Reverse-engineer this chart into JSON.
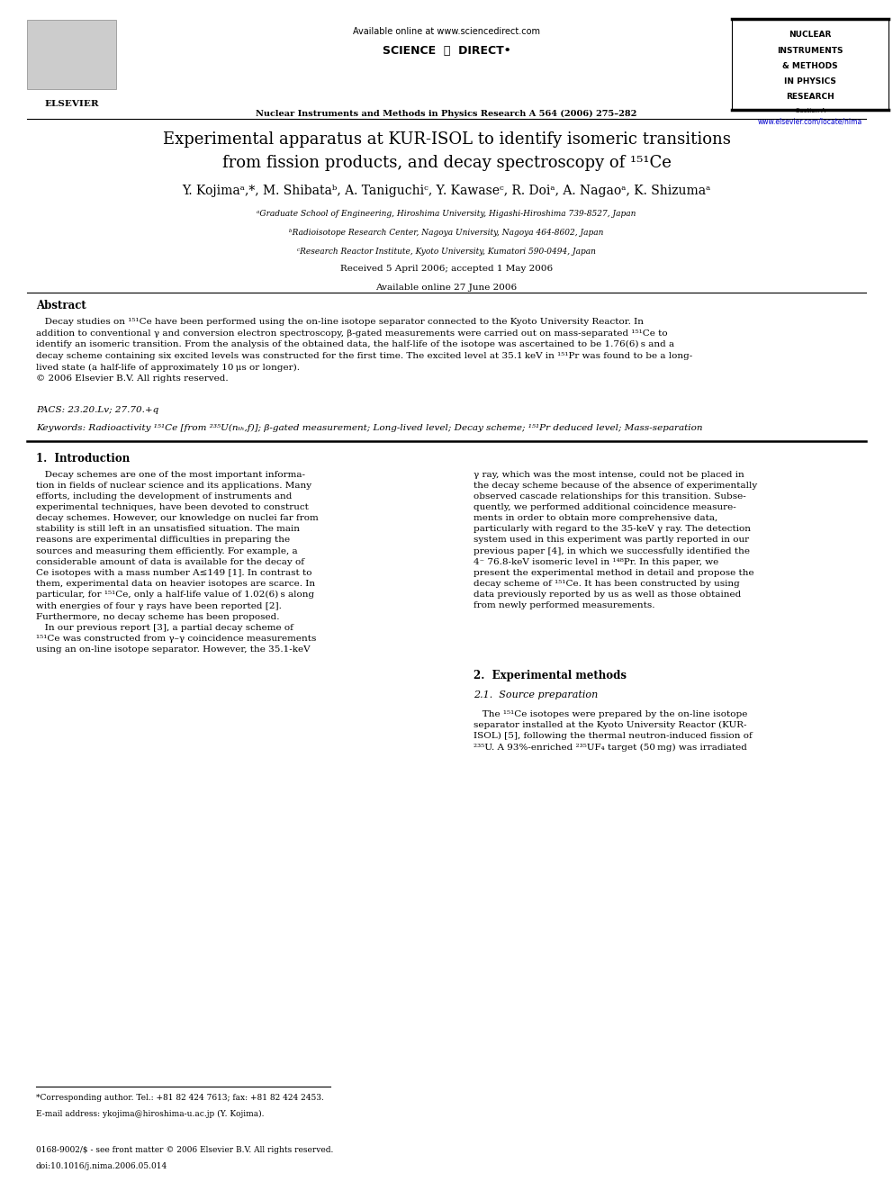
{
  "background_color": "#ffffff",
  "page_width": 9.92,
  "page_height": 13.23,
  "journal_name": "Nuclear Instruments and Methods in Physics Research A 564 (2006) 275–282",
  "available_online": "Available online at www.sciencedirect.com",
  "journal_abbr_lines": [
    "NUCLEAR",
    "INSTRUMENTS",
    "& METHODS",
    "IN PHYSICS",
    "RESEARCH"
  ],
  "journal_abbr_sub": "Section A",
  "url": "www.elsevier.com/locate/nima",
  "elsevier_text": "ELSEVIER",
  "title_line1": "Experimental apparatus at KUR-ISOL to identify isomeric transitions",
  "title_line2": "from fission products, and decay spectroscopy of ¹⁵¹Ce",
  "affil_a": "ᵃGraduate School of Engineering, Hiroshima University, Higashi-Hiroshima 739-8527, Japan",
  "affil_b": "ᵇRadioisotope Research Center, Nagoya University, Nagoya 464-8602, Japan",
  "affil_c": "ᶜResearch Reactor Institute, Kyoto University, Kumatori 590-0494, Japan",
  "received": "Received 5 April 2006; accepted 1 May 2006",
  "available_online2": "Available online 27 June 2006",
  "abstract_title": "Abstract",
  "pacs": "PACS: 23.20.Lv; 27.70.+q",
  "keywords": "Keywords: Radioactivity ¹⁵¹Ce [from ²³⁵U(nₜₕ,f)]; β-gated measurement; Long-lived level; Decay scheme; ¹⁵¹Pr deduced level; Mass-separation",
  "section1_title": "1.  Introduction",
  "section2_title": "2.  Experimental methods",
  "section21_title": "2.1.  Source preparation",
  "footnote_star": "*Corresponding author. Tel.: +81 82 424 7613; fax: +81 82 424 2453.",
  "footnote_email": "E-mail address: ykojima@hiroshima-u.ac.jp (Y. Kojima).",
  "footer_issn": "0168-9002/$ - see front matter © 2006 Elsevier B.V. All rights reserved.",
  "footer_doi": "doi:10.1016/j.nima.2006.05.014"
}
